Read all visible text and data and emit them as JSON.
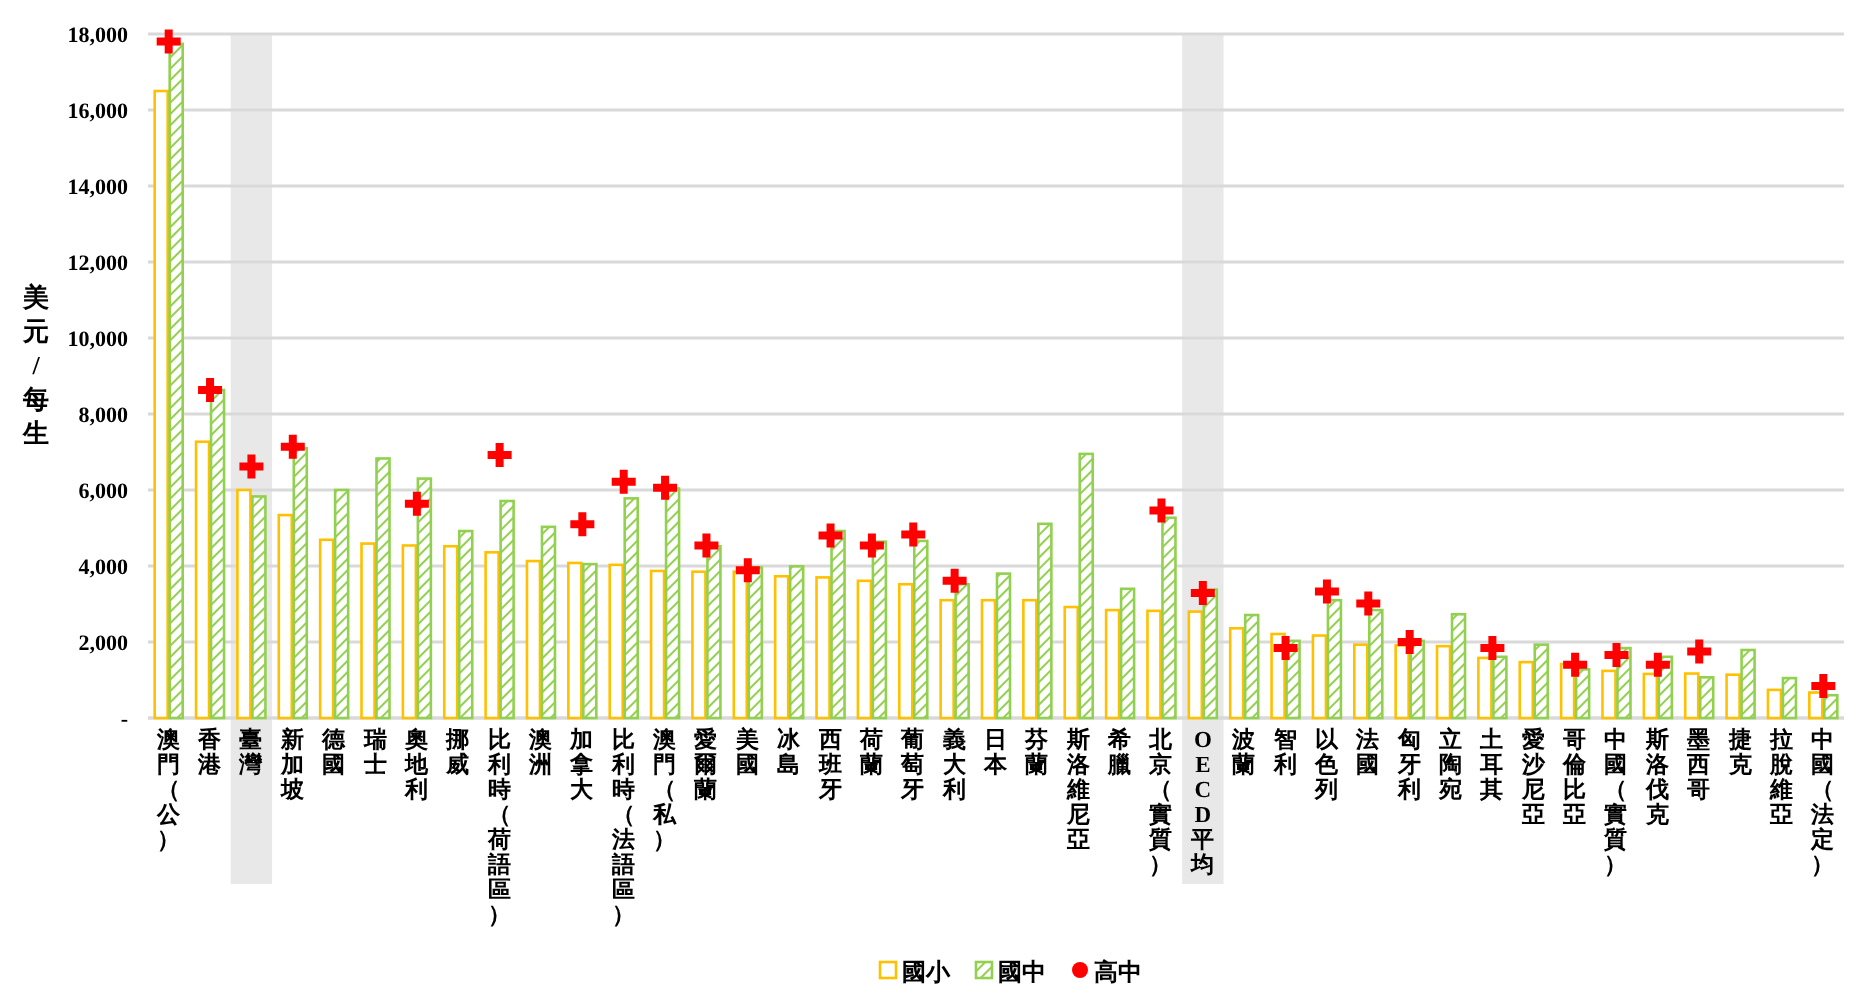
{
  "chart_data": {
    "type": "bar",
    "ylabel": "美元/每生",
    "categories": [
      "澳門（公）",
      "香港",
      "臺灣",
      "新加坡",
      "德國",
      "瑞士",
      "奧地利",
      "挪威",
      "比利時（荷語區）",
      "澳洲",
      "加拿大",
      "比利時（法語區）",
      "澳門（私）",
      "愛爾蘭",
      "美國",
      "冰島",
      "西班牙",
      "荷蘭",
      "葡萄牙",
      "義大利",
      "日本",
      "芬蘭",
      "斯洛維尼亞",
      "希臘",
      "北京（實質）",
      "OECD平均",
      "波蘭",
      "智利",
      "以色列",
      "法國",
      "匈牙利",
      "立陶宛",
      "土耳其",
      "愛沙尼亞",
      "哥倫比亞",
      "中國（實質）",
      "斯洛伐克",
      "墨西哥",
      "捷克",
      "拉脫維亞",
      "中國（法定）"
    ],
    "series": [
      {
        "name": "國小",
        "color": "#ffc000",
        "values": [
          16500,
          7270,
          6000,
          5340,
          4690,
          4590,
          4540,
          4520,
          4360,
          4130,
          4080,
          4030,
          3870,
          3850,
          3850,
          3730,
          3700,
          3610,
          3520,
          3100,
          3100,
          3100,
          2920,
          2840,
          2820,
          2800,
          2360,
          2210,
          2170,
          1930,
          1910,
          1890,
          1580,
          1470,
          1420,
          1240,
          1160,
          1170,
          1140,
          740,
          670
        ]
      },
      {
        "name": "國中",
        "color": "#92d050",
        "values": [
          17740,
          8630,
          5830,
          7100,
          6000,
          6830,
          6300,
          4920,
          5710,
          5030,
          4050,
          5780,
          6040,
          4520,
          3960,
          3990,
          4920,
          4640,
          4660,
          3520,
          3800,
          5110,
          6950,
          3400,
          5270,
          3380,
          2710,
          2030,
          3100,
          2840,
          2030,
          2730,
          1610,
          1930,
          1280,
          1840,
          1610,
          1070,
          1790,
          1050,
          600
        ]
      },
      {
        "name": "高中",
        "type": "scatter",
        "marker": "cross",
        "color": "#ff0000",
        "values": [
          17800,
          8630,
          6620,
          7140,
          null,
          null,
          5640,
          null,
          6920,
          null,
          5100,
          6220,
          6060,
          4540,
          3890,
          null,
          4800,
          4540,
          4830,
          3610,
          null,
          null,
          null,
          null,
          5460,
          3290,
          null,
          1840,
          3330,
          3010,
          2000,
          null,
          1840,
          null,
          1400,
          1660,
          1400,
          1750,
          null,
          null,
          840
        ]
      }
    ],
    "ylim": [
      0,
      18000
    ],
    "yticks": [
      {
        "value": 0,
        "label": "-"
      },
      {
        "value": 2000,
        "label": "2,000"
      },
      {
        "value": 4000,
        "label": "4,000"
      },
      {
        "value": 6000,
        "label": "6,000"
      },
      {
        "value": 8000,
        "label": "8,000"
      },
      {
        "value": 10000,
        "label": "10,000"
      },
      {
        "value": 12000,
        "label": "12,000"
      },
      {
        "value": 14000,
        "label": "14,000"
      },
      {
        "value": 16000,
        "label": "16,000"
      },
      {
        "value": 18000,
        "label": "18,000"
      }
    ],
    "grid": "y",
    "legend": "bottom",
    "bands": [
      {
        "axis": "x",
        "from": "臺灣",
        "to": "臺灣",
        "color": "#e8e8e8"
      },
      {
        "axis": "x",
        "from": "OECD平均",
        "to": "OECD平均",
        "color": "#e8e8e8"
      }
    ]
  }
}
